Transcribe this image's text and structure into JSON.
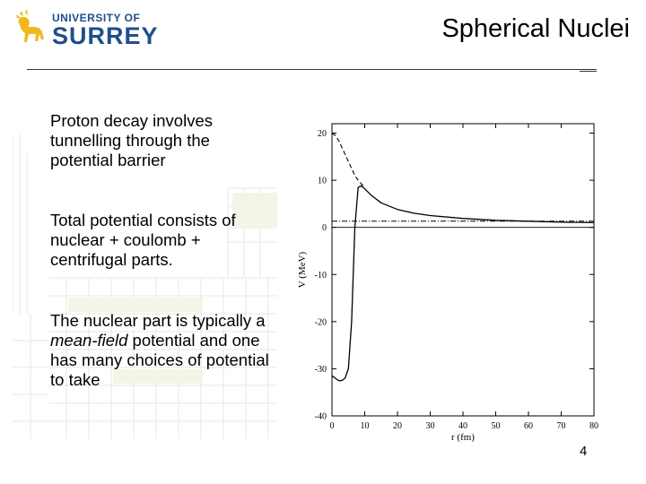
{
  "header": {
    "logo_top": "UNIVERSITY OF",
    "logo_main": "SURREY",
    "title": "Spherical Nuclei"
  },
  "bullets": {
    "b1": "Proton decay involves tunnelling through the potential barrier",
    "b2": "Total potential consists of nuclear + coulomb + centrifugal parts.",
    "b3_pre": "The nuclear part is typically a ",
    "b3_em": "mean-field",
    "b3_post": " potential and one has many choices of potential to take"
  },
  "chart_data": {
    "type": "line",
    "xlabel": "r (fm)",
    "ylabel": "V (MeV)",
    "xlim": [
      0,
      80
    ],
    "ylim": [
      -40,
      22
    ],
    "xticks": [
      0,
      10,
      20,
      30,
      40,
      50,
      60,
      70,
      80
    ],
    "yticks": [
      -40,
      -30,
      -20,
      -10,
      0,
      10,
      20
    ],
    "series": [
      {
        "style": "solid",
        "x": [
          0,
          1,
          2,
          3,
          4,
          5,
          6,
          7,
          8,
          9,
          10,
          12,
          15,
          20,
          25,
          30,
          40,
          50,
          60,
          70,
          80
        ],
        "y": [
          -31.5,
          -32,
          -32.5,
          -32.5,
          -32,
          -30,
          -20,
          0,
          8.5,
          8.8,
          8.2,
          6.8,
          5.2,
          3.8,
          3.0,
          2.5,
          1.9,
          1.5,
          1.3,
          1.1,
          1.0
        ]
      },
      {
        "style": "dashed",
        "x": [
          0,
          1,
          2,
          3,
          4,
          5,
          6,
          7,
          8,
          9,
          10
        ],
        "y": [
          20,
          19.5,
          18.5,
          17,
          15.5,
          14,
          12.5,
          11,
          10,
          9.2,
          8.6
        ]
      },
      {
        "style": "dash-dot",
        "x": [
          0,
          80
        ],
        "y": [
          1.3,
          1.3
        ]
      },
      {
        "style": "solid-thin",
        "x": [
          0,
          80
        ],
        "y": [
          0,
          0
        ]
      }
    ]
  },
  "footer": {
    "page_number": "4"
  }
}
